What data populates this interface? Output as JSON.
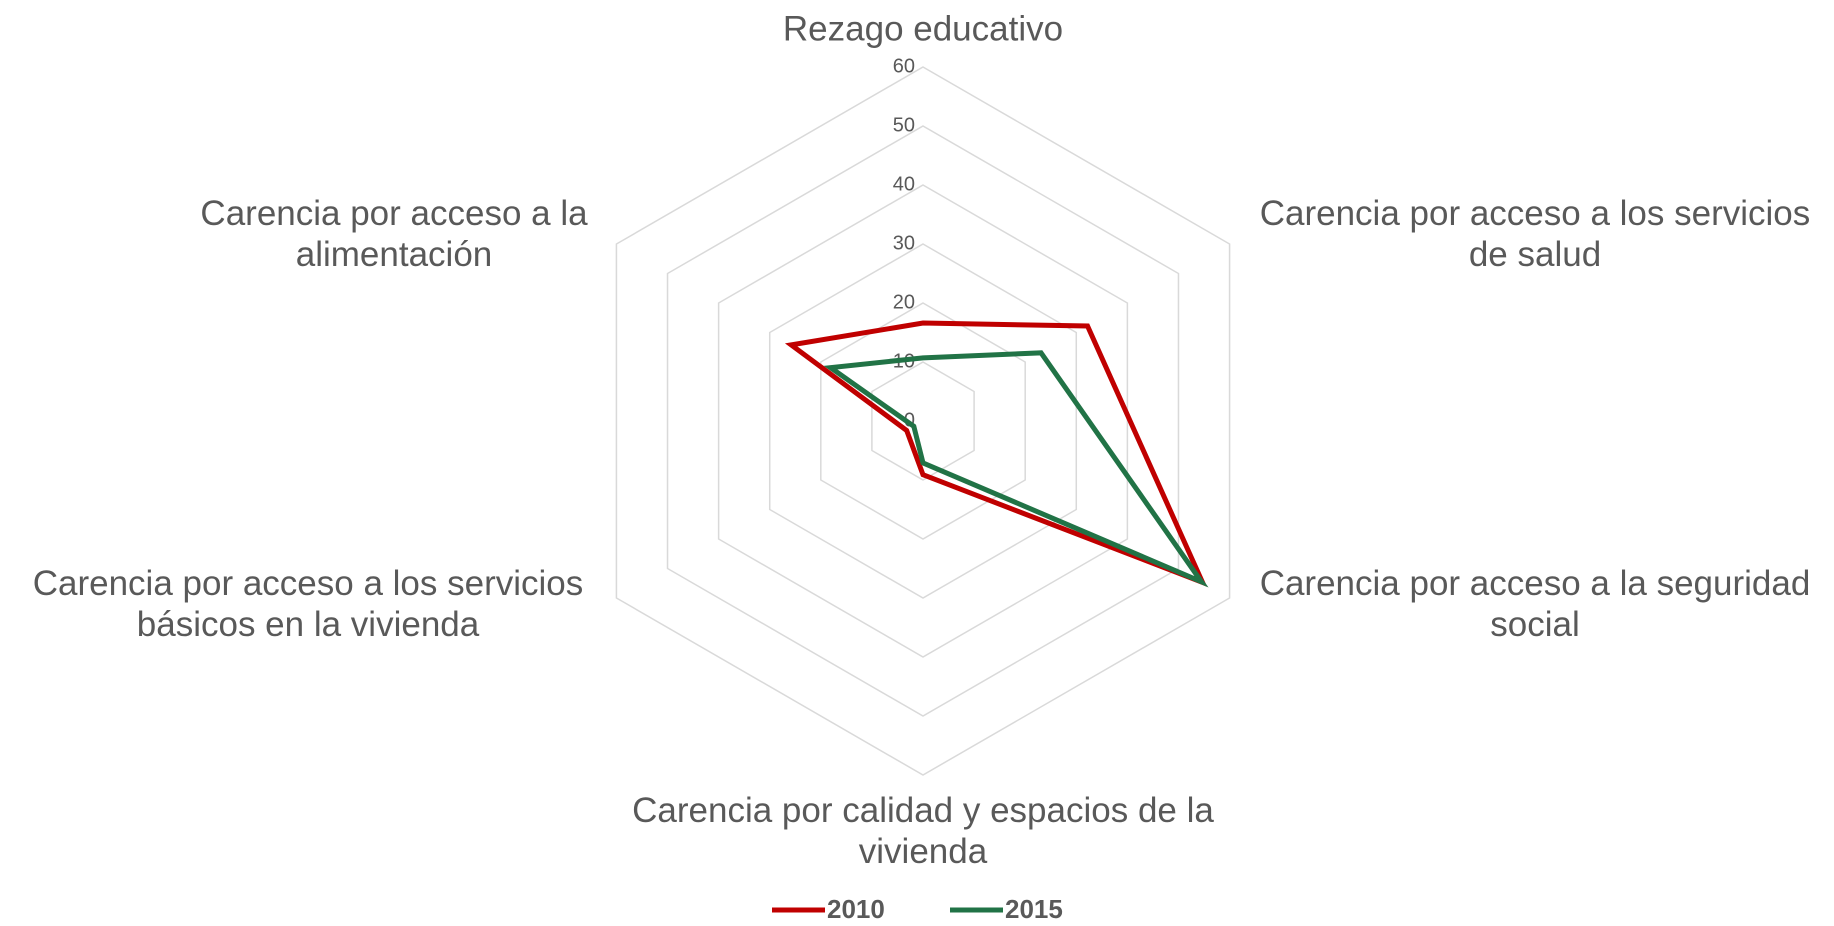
{
  "chart_data": {
    "type": "radar",
    "categories": [
      "Rezago educativo",
      "Carencia por acceso a los servicios de salud",
      "Carencia por acceso a la seguridad social",
      "Carencia por calidad y espacios de la vivienda",
      "Carencia por acceso a los servicios básicos en la vivienda",
      "Carencia por acceso a la alimentación"
    ],
    "series": [
      {
        "name": "2010",
        "color": "#c00000",
        "values": [
          16.6,
          32.2,
          54.7,
          9.1,
          3.2,
          25.8
        ]
      },
      {
        "name": "2015",
        "color": "#217346",
        "values": [
          10.7,
          23.1,
          54.5,
          7.1,
          1.8,
          18.1
        ]
      }
    ],
    "ylim": [
      0,
      60
    ],
    "yticks": [
      0,
      10,
      20,
      30,
      40,
      50,
      60
    ],
    "grid": true,
    "legend": "bottom"
  }
}
